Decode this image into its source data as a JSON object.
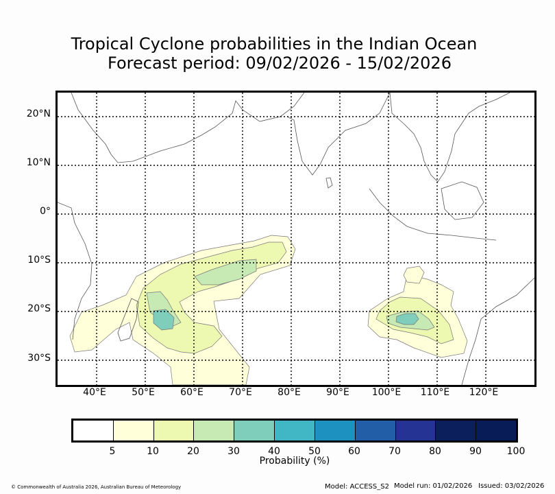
{
  "title": {
    "line1": "Tropical Cyclone probabilities in the Indian Ocean",
    "line2": "Forecast period: 09/02/2026 - 15/02/2026"
  },
  "map": {
    "lat_labels": [
      "20°N",
      "10°N",
      "0°",
      "10°S",
      "20°S",
      "30°S"
    ],
    "lon_labels": [
      "40°E",
      "50°E",
      "60°E",
      "70°E",
      "80°E",
      "90°E",
      "100°E",
      "110°E",
      "120°E"
    ],
    "lon_range": [
      32,
      130
    ],
    "lat_range": [
      -35,
      25
    ],
    "gridlines": "dotted"
  },
  "colorbar": {
    "label": "Probability (%)",
    "ticks": [
      "5",
      "10",
      "20",
      "30",
      "40",
      "50",
      "60",
      "70",
      "80",
      "90",
      "100"
    ],
    "colors": [
      "#ffffff",
      "#ffffd9",
      "#edf8b1",
      "#c7e9b4",
      "#7fcdbb",
      "#41b6c4",
      "#1d91c0",
      "#225ea8",
      "#253494",
      "#0b1f5c",
      "#081d58"
    ]
  },
  "footer": {
    "copyright": "© Commonwealth of Australia 2026, Australian Bureau of Meteorology",
    "model": "Model: ACCESS_S2",
    "model_run": "Model run: 01/02/2026",
    "issued": "Issued: 03/02/2026"
  }
}
